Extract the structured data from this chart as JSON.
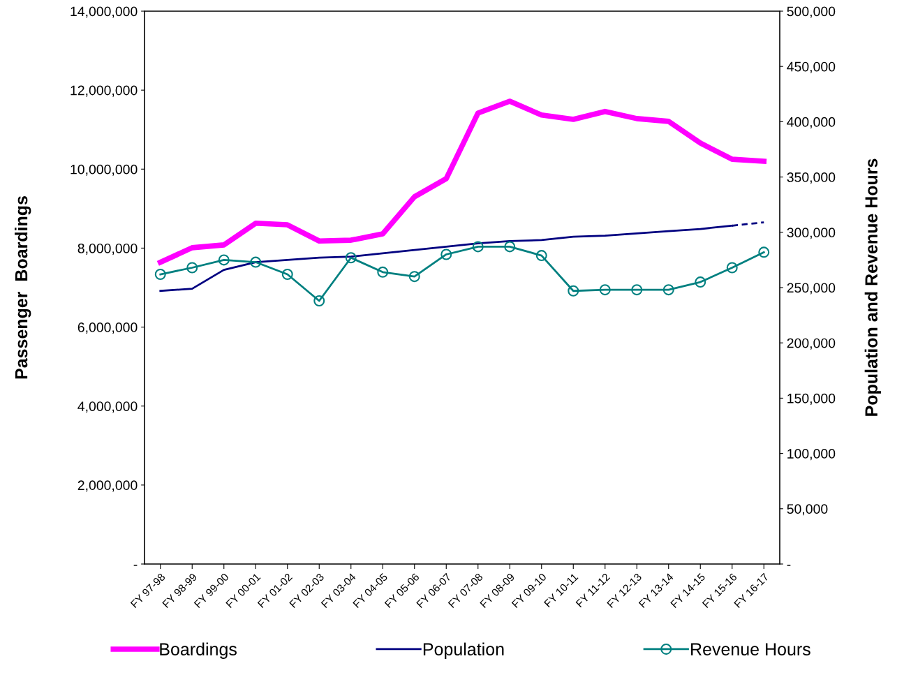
{
  "chart_data": {
    "type": "line",
    "ylabel": "Passenger  Boardings",
    "y2label": "Population and Revenue Hours",
    "categories": [
      "FY 97-98",
      "FY 98-99",
      "FY 99-00",
      "FY 00-01",
      "FY 01-02",
      "FY 02-03",
      "FY 03-04",
      "FY 04-05",
      "FY 05-06",
      "FY 06-07",
      "FY 07-08",
      "FY 08-09",
      "FY 09-10",
      "FY 10-11",
      "FY 11-12",
      "FY 12-13",
      "FY 13-14",
      "FY 14-15",
      "FY 15-16",
      "FY 16-17"
    ],
    "series": [
      {
        "name": "Boardings",
        "color": "#ff00ff",
        "marker": "none",
        "line_style": "solid",
        "values": [
          7640000,
          8010000,
          8080000,
          8630000,
          8590000,
          8180000,
          8200000,
          8360000,
          9300000,
          9760000,
          11420000,
          11720000,
          11370000,
          11260000,
          11460000,
          11280000,
          11210000,
          10660000,
          10250000,
          10200000
        ]
      },
      {
        "name": "Population",
        "color": "#000080",
        "axis": "y2",
        "marker": "none",
        "line_style": "solid",
        "values": [
          247000,
          249000,
          266000,
          273000,
          275000,
          277000,
          278000,
          281000,
          284000,
          287000,
          290000,
          292000,
          293000,
          296000,
          297000,
          299000,
          301000,
          303000,
          306000,
          null
        ]
      },
      {
        "color": "#000080",
        "axis": "y2",
        "marker": "none",
        "line_style": "dashed",
        "values": [
          null,
          null,
          null,
          null,
          null,
          null,
          null,
          null,
          null,
          null,
          null,
          null,
          null,
          null,
          null,
          null,
          null,
          null,
          306000,
          309000
        ]
      },
      {
        "name": "Revenue Hours",
        "color": "#008080",
        "axis": "y2",
        "marker": "circle",
        "line_style": "solid",
        "values": [
          262000,
          268000,
          275000,
          273000,
          262000,
          238000,
          277000,
          264000,
          260000,
          280000,
          287000,
          287000,
          279000,
          247000,
          248000,
          248000,
          248000,
          255000,
          268000,
          282000
        ]
      }
    ],
    "ylim": [
      0,
      14000000
    ],
    "yticks": [
      {
        "value": 0,
        "label": "-"
      },
      {
        "value": 2000000,
        "label": "2,000,000"
      },
      {
        "value": 4000000,
        "label": "4,000,000"
      },
      {
        "value": 6000000,
        "label": "6,000,000"
      },
      {
        "value": 8000000,
        "label": "8,000,000"
      },
      {
        "value": 10000000,
        "label": "10,000,000"
      },
      {
        "value": 12000000,
        "label": "12,000,000"
      },
      {
        "value": 14000000,
        "label": "14,000,000"
      }
    ],
    "y2lim": [
      0,
      500000
    ],
    "y2ticks": [
      {
        "value": 0,
        "label": "-"
      },
      {
        "value": 50000,
        "label": "50,000"
      },
      {
        "value": 100000,
        "label": "100,000"
      },
      {
        "value": 150000,
        "label": "150,000"
      },
      {
        "value": 200000,
        "label": "200,000"
      },
      {
        "value": 250000,
        "label": "250,000"
      },
      {
        "value": 300000,
        "label": "300,000"
      },
      {
        "value": 350000,
        "label": "350,000"
      },
      {
        "value": 400000,
        "label": "400,000"
      },
      {
        "value": 450000,
        "label": "450,000"
      },
      {
        "value": 500000,
        "label": "500,000"
      }
    ],
    "grid": false,
    "legend": "bottom"
  }
}
